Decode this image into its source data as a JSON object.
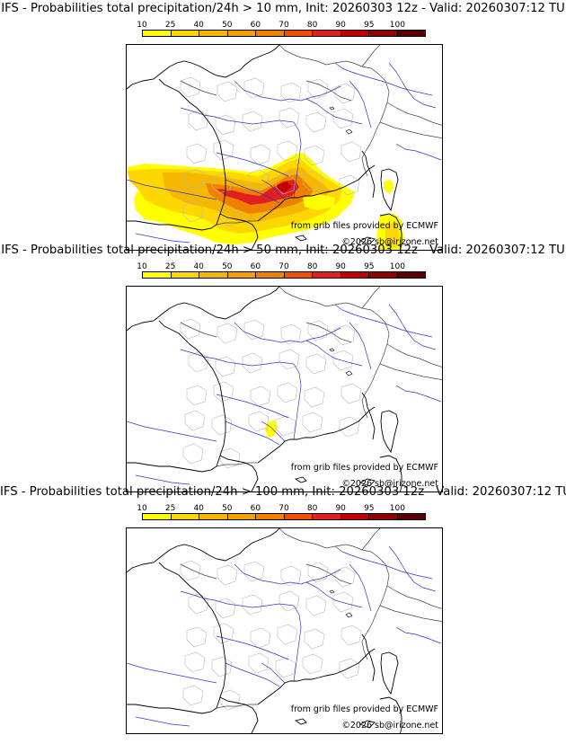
{
  "colorbar": {
    "ticks": [
      "10",
      "25",
      "40",
      "50",
      "60",
      "70",
      "80",
      "90",
      "95",
      "100"
    ],
    "colors": [
      "#ffff00",
      "#ffd700",
      "#f5b800",
      "#f59f00",
      "#f08000",
      "#f05000",
      "#e02020",
      "#c00000",
      "#900000",
      "#5a0000"
    ]
  },
  "panels": [
    {
      "title": "IFS - Probabilities total precipitation/24h > 10 mm, Init: 20260303 12z - Valid: 20260307:12 TU",
      "source_credit": "from grib files provided by ECMWF",
      "copyright": "©2026 sb@irizone.net",
      "precip_probability_areas": [
        {
          "region": "southwest-france",
          "probability_band": "10-25"
        },
        {
          "region": "languedoc",
          "probability_band": "60-90"
        },
        {
          "region": "provence",
          "probability_band": "40-70"
        },
        {
          "region": "corsica",
          "probability_band": "10-25"
        },
        {
          "region": "sardinia",
          "probability_band": "10-25"
        },
        {
          "region": "northeast-spain",
          "probability_band": "25-60"
        }
      ]
    },
    {
      "title": "IFS - Probabilities total precipitation/24h > 50 mm, Init: 20260303 12z - Valid: 20260307:12 TU",
      "source_credit": "from grib files provided by ECMWF",
      "copyright": "©2026 sb@irizone.net",
      "precip_probability_areas": [
        {
          "region": "roussillon",
          "probability_band": "10-25"
        }
      ]
    },
    {
      "title": "IFS - Probabilities total precipitation/24h > 100 mm, Init: 20260303 12z - Valid: 20260307:12 TU",
      "source_credit": "from grib files provided by ECMWF",
      "copyright": "©2026 sb@irizone.net",
      "precip_probability_areas": []
    }
  ]
}
